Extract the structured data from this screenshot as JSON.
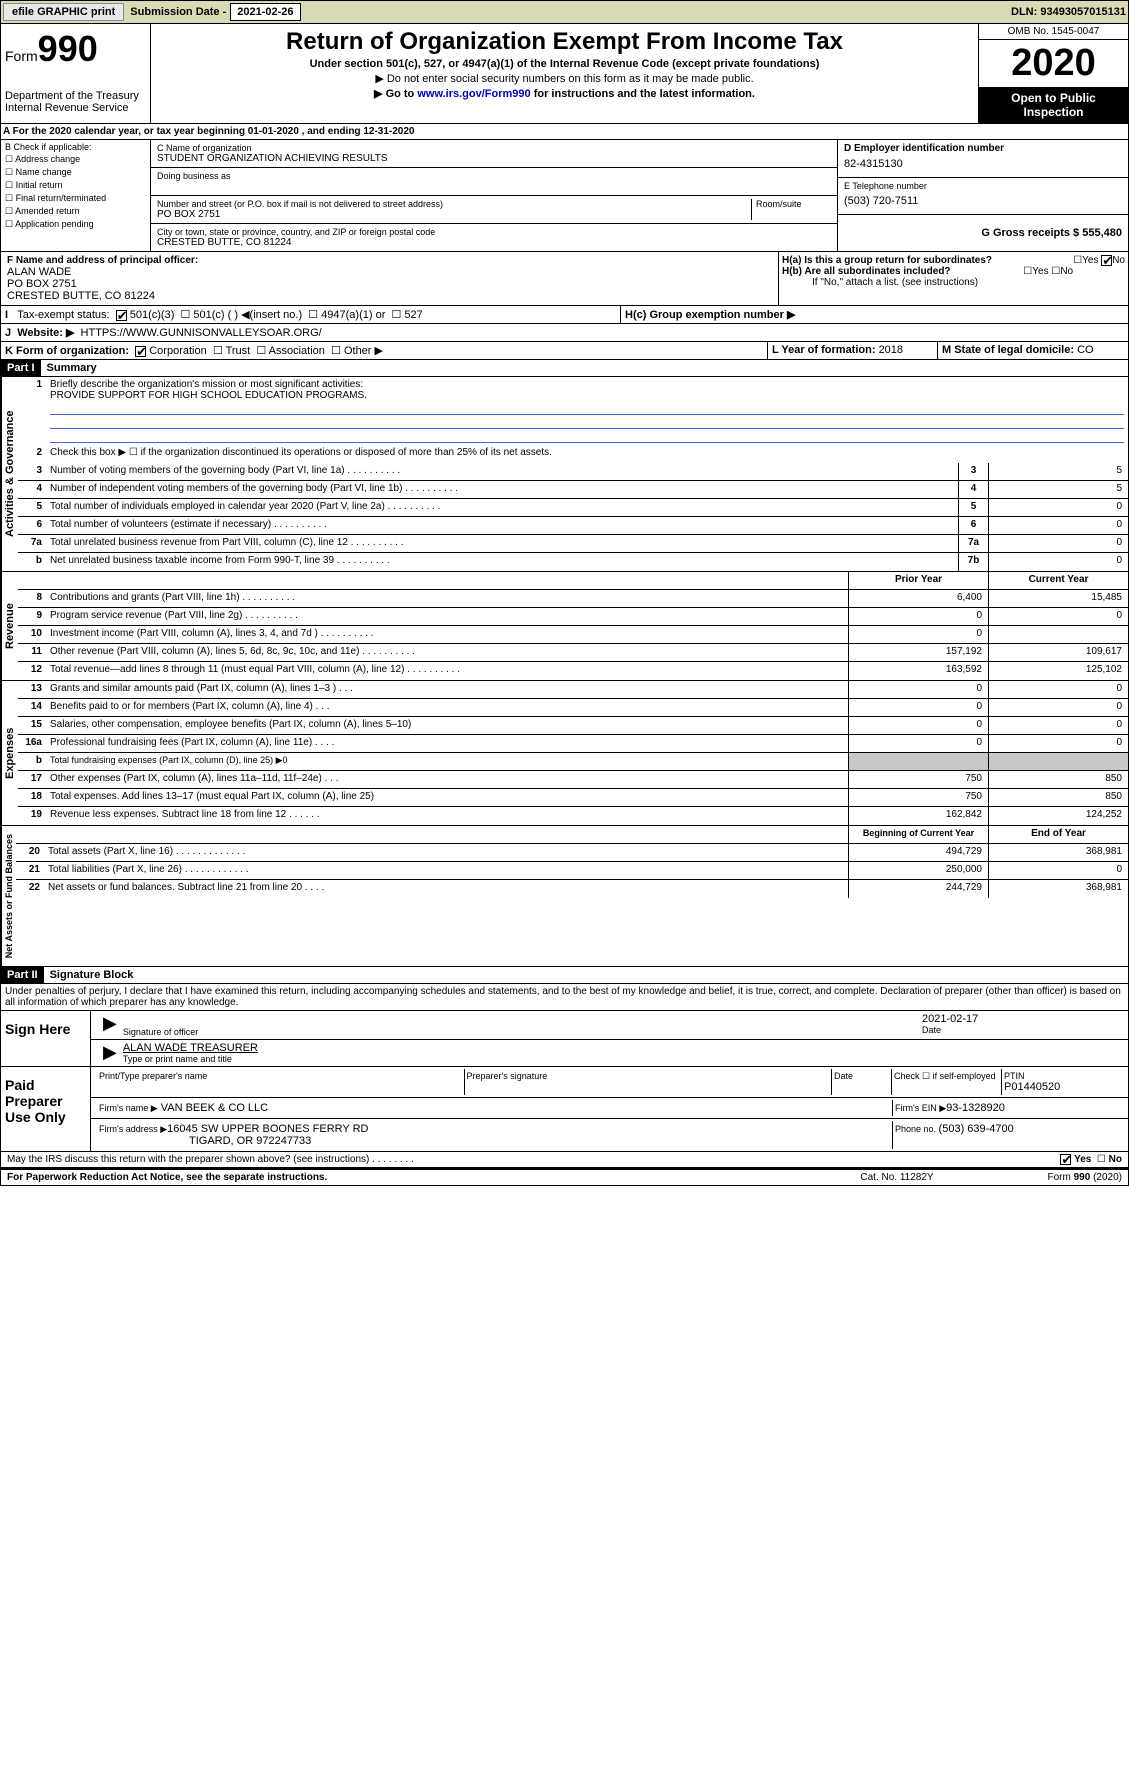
{
  "topbar": {
    "efile": "efile GRAPHIC print",
    "sub_label": "Submission Date - ",
    "sub_date": "2021-02-26",
    "dln": "DLN: 93493057015131"
  },
  "header": {
    "form_word": "Form",
    "form_num": "990",
    "dept": "Department of the Treasury\nInternal Revenue Service",
    "title": "Return of Organization Exempt From Income Tax",
    "sub": "Under section 501(c), 527, or 4947(a)(1) of the Internal Revenue Code (except private foundations)",
    "note1": "▶ Do not enter social security numbers on this form as it may be made public.",
    "note2_pre": "▶ Go to ",
    "note2_link": "www.irs.gov/Form990",
    "note2_post": " for instructions and the latest information.",
    "omb": "OMB No. 1545-0047",
    "year": "2020",
    "open": "Open to Public Inspection"
  },
  "sectionA": "A For the 2020 calendar year, or tax year beginning 01-01-2020   , and ending 12-31-2020",
  "checkB": {
    "label": "B Check if applicable:",
    "items": [
      "Address change",
      "Name change",
      "Initial return",
      "Final return/terminated",
      "Amended return",
      "Application pending"
    ]
  },
  "orgC": {
    "name_label": "C Name of organization",
    "name": "STUDENT ORGANIZATION ACHIEVING RESULTS",
    "dba_label": "Doing business as",
    "addr_label": "Number and street (or P.O. box if mail is not delivered to street address)",
    "room_label": "Room/suite",
    "addr": "PO BOX 2751",
    "city_label": "City or town, state or province, country, and ZIP or foreign postal code",
    "city": "CRESTED BUTTE, CO  81224"
  },
  "rightD": {
    "ein_label": "D Employer identification number",
    "ein": "82-4315130",
    "tel_label": "E Telephone number",
    "tel": "(503) 720-7511",
    "gross_label": "G Gross receipts $ ",
    "gross": "555,480"
  },
  "sectionF": {
    "label": "F  Name and address of principal officer:",
    "name": "ALAN WADE",
    "addr1": "PO BOX 2751",
    "addr2": "CRESTED BUTTE, CO  81224"
  },
  "sectionH": {
    "ha": "H(a)  Is this a group return for subordinates?",
    "hb": "H(b)  Are all subordinates included?",
    "hb_note": "If \"No,\" attach a list. (see instructions)",
    "hc": "H(c)  Group exemption number ▶",
    "yes": "Yes",
    "no": "No"
  },
  "sectionI": {
    "label": "Tax-exempt status:",
    "opt1": "501(c)(3)",
    "opt2": "501(c) (  ) ◀(insert no.)",
    "opt3": "4947(a)(1) or",
    "opt4": "527"
  },
  "sectionJ": {
    "label": "Website: ▶",
    "val": "HTTPS://WWW.GUNNISONVALLEYSOAR.ORG/"
  },
  "sectionK": {
    "label": "K Form of organization:",
    "opts": [
      "Corporation",
      "Trust",
      "Association",
      "Other ▶"
    ]
  },
  "sectionL": {
    "label": "L Year of formation: ",
    "val": "2018"
  },
  "sectionM": {
    "label": "M State of legal domicile: ",
    "val": "CO"
  },
  "part1": {
    "header": "Part I",
    "title": "Summary",
    "vtext_gov": "Activities & Governance",
    "vtext_rev": "Revenue",
    "vtext_exp": "Expenses",
    "vtext_net": "Net Assets or Fund Balances",
    "line1_label": "Briefly describe the organization's mission or most significant activities:",
    "line1_val": "PROVIDE SUPPORT FOR HIGH SCHOOL EDUCATION PROGRAMS.",
    "line2": "Check this box ▶ ☐  if the organization discontinued its operations or disposed of more than 25% of its net assets.",
    "col_prior": "Prior Year",
    "col_current": "Current Year",
    "col_beg": "Beginning of Current Year",
    "col_end": "End of Year",
    "rows_gov": [
      {
        "n": "3",
        "t": "Number of voting members of the governing body (Part VI, line 1a)",
        "box": "3",
        "v": "5"
      },
      {
        "n": "4",
        "t": "Number of independent voting members of the governing body (Part VI, line 1b)",
        "box": "4",
        "v": "5"
      },
      {
        "n": "5",
        "t": "Total number of individuals employed in calendar year 2020 (Part V, line 2a)",
        "box": "5",
        "v": "0"
      },
      {
        "n": "6",
        "t": "Total number of volunteers (estimate if necessary)",
        "box": "6",
        "v": "0"
      },
      {
        "n": "7a",
        "t": "Total unrelated business revenue from Part VIII, column (C), line 12",
        "box": "7a",
        "v": "0"
      },
      {
        "n": "b",
        "t": "Net unrelated business taxable income from Form 990-T, line 39",
        "box": "7b",
        "v": "0"
      }
    ],
    "rows_rev": [
      {
        "n": "8",
        "t": "Contributions and grants (Part VIII, line 1h)",
        "p": "6,400",
        "c": "15,485"
      },
      {
        "n": "9",
        "t": "Program service revenue (Part VIII, line 2g)",
        "p": "0",
        "c": "0"
      },
      {
        "n": "10",
        "t": "Investment income (Part VIII, column (A), lines 3, 4, and 7d )",
        "p": "0",
        "c": ""
      },
      {
        "n": "11",
        "t": "Other revenue (Part VIII, column (A), lines 5, 6d, 8c, 9c, 10c, and 11e)",
        "p": "157,192",
        "c": "109,617"
      },
      {
        "n": "12",
        "t": "Total revenue—add lines 8 through 11 (must equal Part VIII, column (A), line 12)",
        "p": "163,592",
        "c": "125,102"
      }
    ],
    "rows_exp": [
      {
        "n": "13",
        "t": "Grants and similar amounts paid (Part IX, column (A), lines 1–3 )   .   .   .",
        "p": "0",
        "c": "0"
      },
      {
        "n": "14",
        "t": "Benefits paid to or for members (Part IX, column (A), line 4)   .   .   .",
        "p": "0",
        "c": "0"
      },
      {
        "n": "15",
        "t": "Salaries, other compensation, employee benefits (Part IX, column (A), lines 5–10)",
        "p": "0",
        "c": "0"
      },
      {
        "n": "16a",
        "t": "Professional fundraising fees (Part IX, column (A), line 11e)   .   .   .   .",
        "p": "0",
        "c": "0"
      },
      {
        "n": "b",
        "t": "Total fundraising expenses (Part IX, column (D), line 25) ▶0",
        "shade": true
      },
      {
        "n": "17",
        "t": "Other expenses (Part IX, column (A), lines 11a–11d, 11f–24e)   .   .   .",
        "p": "750",
        "c": "850"
      },
      {
        "n": "18",
        "t": "Total expenses. Add lines 13–17 (must equal Part IX, column (A), line 25)",
        "p": "750",
        "c": "850"
      },
      {
        "n": "19",
        "t": "Revenue less expenses. Subtract line 18 from line 12   .   .   .   .   .   .",
        "p": "162,842",
        "c": "124,252"
      }
    ],
    "rows_net": [
      {
        "n": "20",
        "t": "Total assets (Part X, line 16)   .   .   .   .   .   .   .   .   .   .   .   .   .",
        "p": "494,729",
        "c": "368,981"
      },
      {
        "n": "21",
        "t": "Total liabilities (Part X, line 26)   .   .   .   .   .   .   .   .   .   .   .   .",
        "p": "250,000",
        "c": "0"
      },
      {
        "n": "22",
        "t": "Net assets or fund balances. Subtract line 21 from line 20   .   .   .   .",
        "p": "244,729",
        "c": "368,981"
      }
    ]
  },
  "part2": {
    "header": "Part II",
    "title": "Signature Block",
    "perjury": "Under penalties of perjury, I declare that I have examined this return, including accompanying schedules and statements, and to the best of my knowledge and belief, it is true, correct, and complete. Declaration of preparer (other than officer) is based on all information of which preparer has any knowledge.",
    "sign_here": "Sign Here",
    "sig_officer": "Signature of officer",
    "sig_date": "2021-02-17",
    "date_label": "Date",
    "officer_name": "ALAN WADE TREASURER",
    "type_name": "Type or print name and title",
    "paid": "Paid Preparer Use Only",
    "prep_name_label": "Print/Type preparer's name",
    "prep_sig_label": "Preparer's signature",
    "prep_date_label": "Date",
    "check_self": "Check ☐ if self-employed",
    "ptin_label": "PTIN",
    "ptin": "P01440520",
    "firm_name_label": "Firm's name    ▶",
    "firm_name": "VAN BEEK & CO LLC",
    "firm_ein_label": "Firm's EIN ▶",
    "firm_ein": "93-1328920",
    "firm_addr_label": "Firm's address ▶",
    "firm_addr1": "16045 SW UPPER BOONES FERRY RD",
    "firm_addr2": "TIGARD, OR  972247733",
    "phone_label": "Phone no. ",
    "phone": "(503) 639-4700",
    "discuss": "May the IRS discuss this return with the preparer shown above? (see instructions)   .   .   .   .   .   .   .   .",
    "yes": "Yes",
    "no": "No"
  },
  "footer": {
    "pra": "For Paperwork Reduction Act Notice, see the separate instructions.",
    "cat": "Cat. No. 11282Y",
    "form": "Form 990 (2020)"
  }
}
